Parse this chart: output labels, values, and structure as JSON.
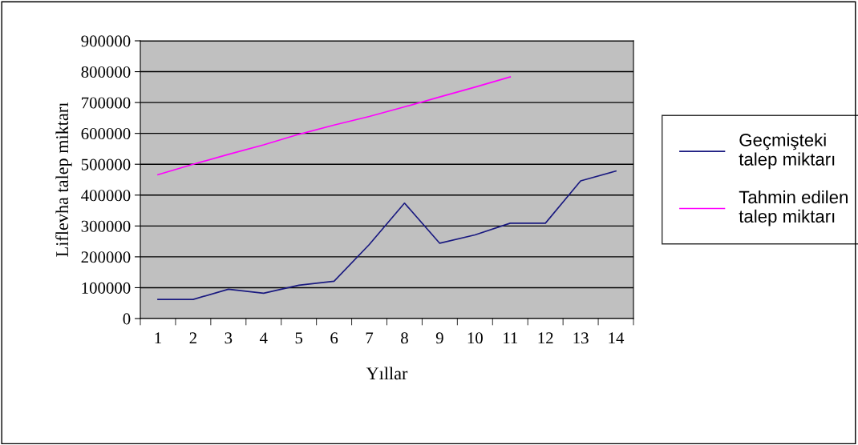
{
  "chart_data": {
    "type": "line",
    "xlabel": "Yıllar",
    "ylabel": "Liflevha talep miktarı",
    "categories": [
      "1",
      "2",
      "3",
      "4",
      "5",
      "6",
      "7",
      "8",
      "9",
      "10",
      "11",
      "12",
      "13",
      "14"
    ],
    "series": [
      {
        "name": "Geçmişteki\ntalep miktarı",
        "color": "#1a1a80",
        "values": [
          62000,
          62000,
          95000,
          82000,
          108000,
          121000,
          240000,
          374000,
          244000,
          271000,
          309000,
          309000,
          446000,
          478000
        ]
      },
      {
        "name": "Tahmin edilen\ntalep miktarı",
        "color": "#ff00ff",
        "values": [
          466000,
          500000,
          532000,
          563000,
          597000,
          627000,
          655000,
          686000,
          718000,
          750000,
          783000,
          null,
          null,
          null
        ]
      }
    ],
    "ylim": [
      0,
      900000
    ],
    "yticks": [
      0,
      100000,
      200000,
      300000,
      400000,
      500000,
      600000,
      700000,
      800000,
      900000
    ],
    "grid": "y",
    "legend": "right",
    "marker": "none",
    "line_style": "solid"
  }
}
